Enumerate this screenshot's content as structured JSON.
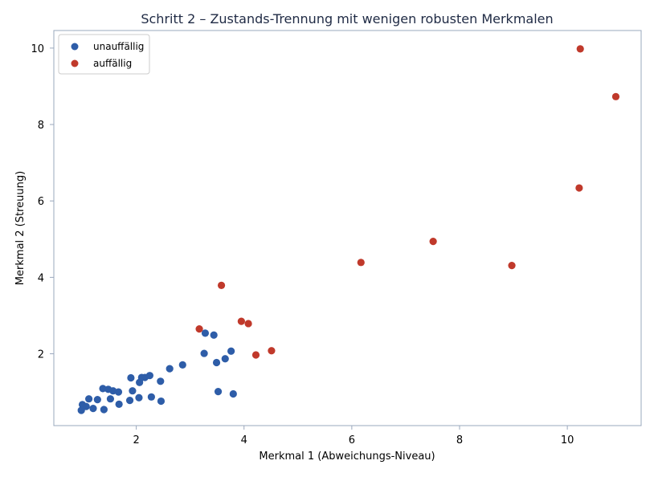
{
  "chart_data": {
    "type": "scatter",
    "title": "Schritt 2 – Zustands-Trennung mit wenigen robusten Merkmalen",
    "xlabel": "Merkmal 1 (Abweichungs-Niveau)",
    "ylabel": "Merkmal 2 (Streuung)",
    "xlim": [
      0.47,
      11.37
    ],
    "ylim": [
      0.12,
      10.46
    ],
    "xticks": [
      2,
      4,
      6,
      8,
      10
    ],
    "yticks": [
      2,
      4,
      6,
      8,
      10
    ],
    "grid": false,
    "legend_position": "top-left",
    "series": [
      {
        "name": "unauffällig",
        "color": "#2e5da8",
        "points": [
          [
            0.98,
            0.52
          ],
          [
            1.0,
            0.67
          ],
          [
            1.07,
            0.62
          ],
          [
            1.12,
            0.82
          ],
          [
            1.2,
            0.57
          ],
          [
            1.28,
            0.8
          ],
          [
            1.38,
            1.09
          ],
          [
            1.4,
            0.54
          ],
          [
            1.48,
            1.07
          ],
          [
            1.52,
            0.82
          ],
          [
            1.57,
            1.03
          ],
          [
            1.67,
            1.0
          ],
          [
            1.68,
            0.68
          ],
          [
            1.88,
            0.78
          ],
          [
            1.9,
            1.37
          ],
          [
            1.93,
            1.03
          ],
          [
            2.05,
            0.85
          ],
          [
            2.06,
            1.25
          ],
          [
            2.1,
            1.38
          ],
          [
            2.16,
            1.38
          ],
          [
            2.25,
            1.43
          ],
          [
            2.28,
            0.87
          ],
          [
            2.45,
            1.28
          ],
          [
            2.46,
            0.76
          ],
          [
            2.62,
            1.61
          ],
          [
            2.86,
            1.71
          ],
          [
            3.26,
            2.01
          ],
          [
            3.28,
            2.54
          ],
          [
            3.44,
            2.49
          ],
          [
            3.49,
            1.77
          ],
          [
            3.52,
            1.01
          ],
          [
            3.65,
            1.87
          ],
          [
            3.76,
            2.07
          ],
          [
            3.8,
            0.95
          ]
        ]
      },
      {
        "name": "auffällig",
        "color": "#c0392b",
        "points": [
          [
            3.17,
            2.65
          ],
          [
            3.58,
            3.79
          ],
          [
            3.95,
            2.85
          ],
          [
            4.08,
            2.79
          ],
          [
            4.22,
            1.97
          ],
          [
            4.51,
            2.08
          ],
          [
            6.17,
            4.39
          ],
          [
            7.51,
            4.94
          ],
          [
            8.97,
            4.31
          ],
          [
            10.22,
            6.34
          ],
          [
            10.24,
            9.98
          ],
          [
            10.9,
            8.73
          ]
        ]
      }
    ]
  }
}
